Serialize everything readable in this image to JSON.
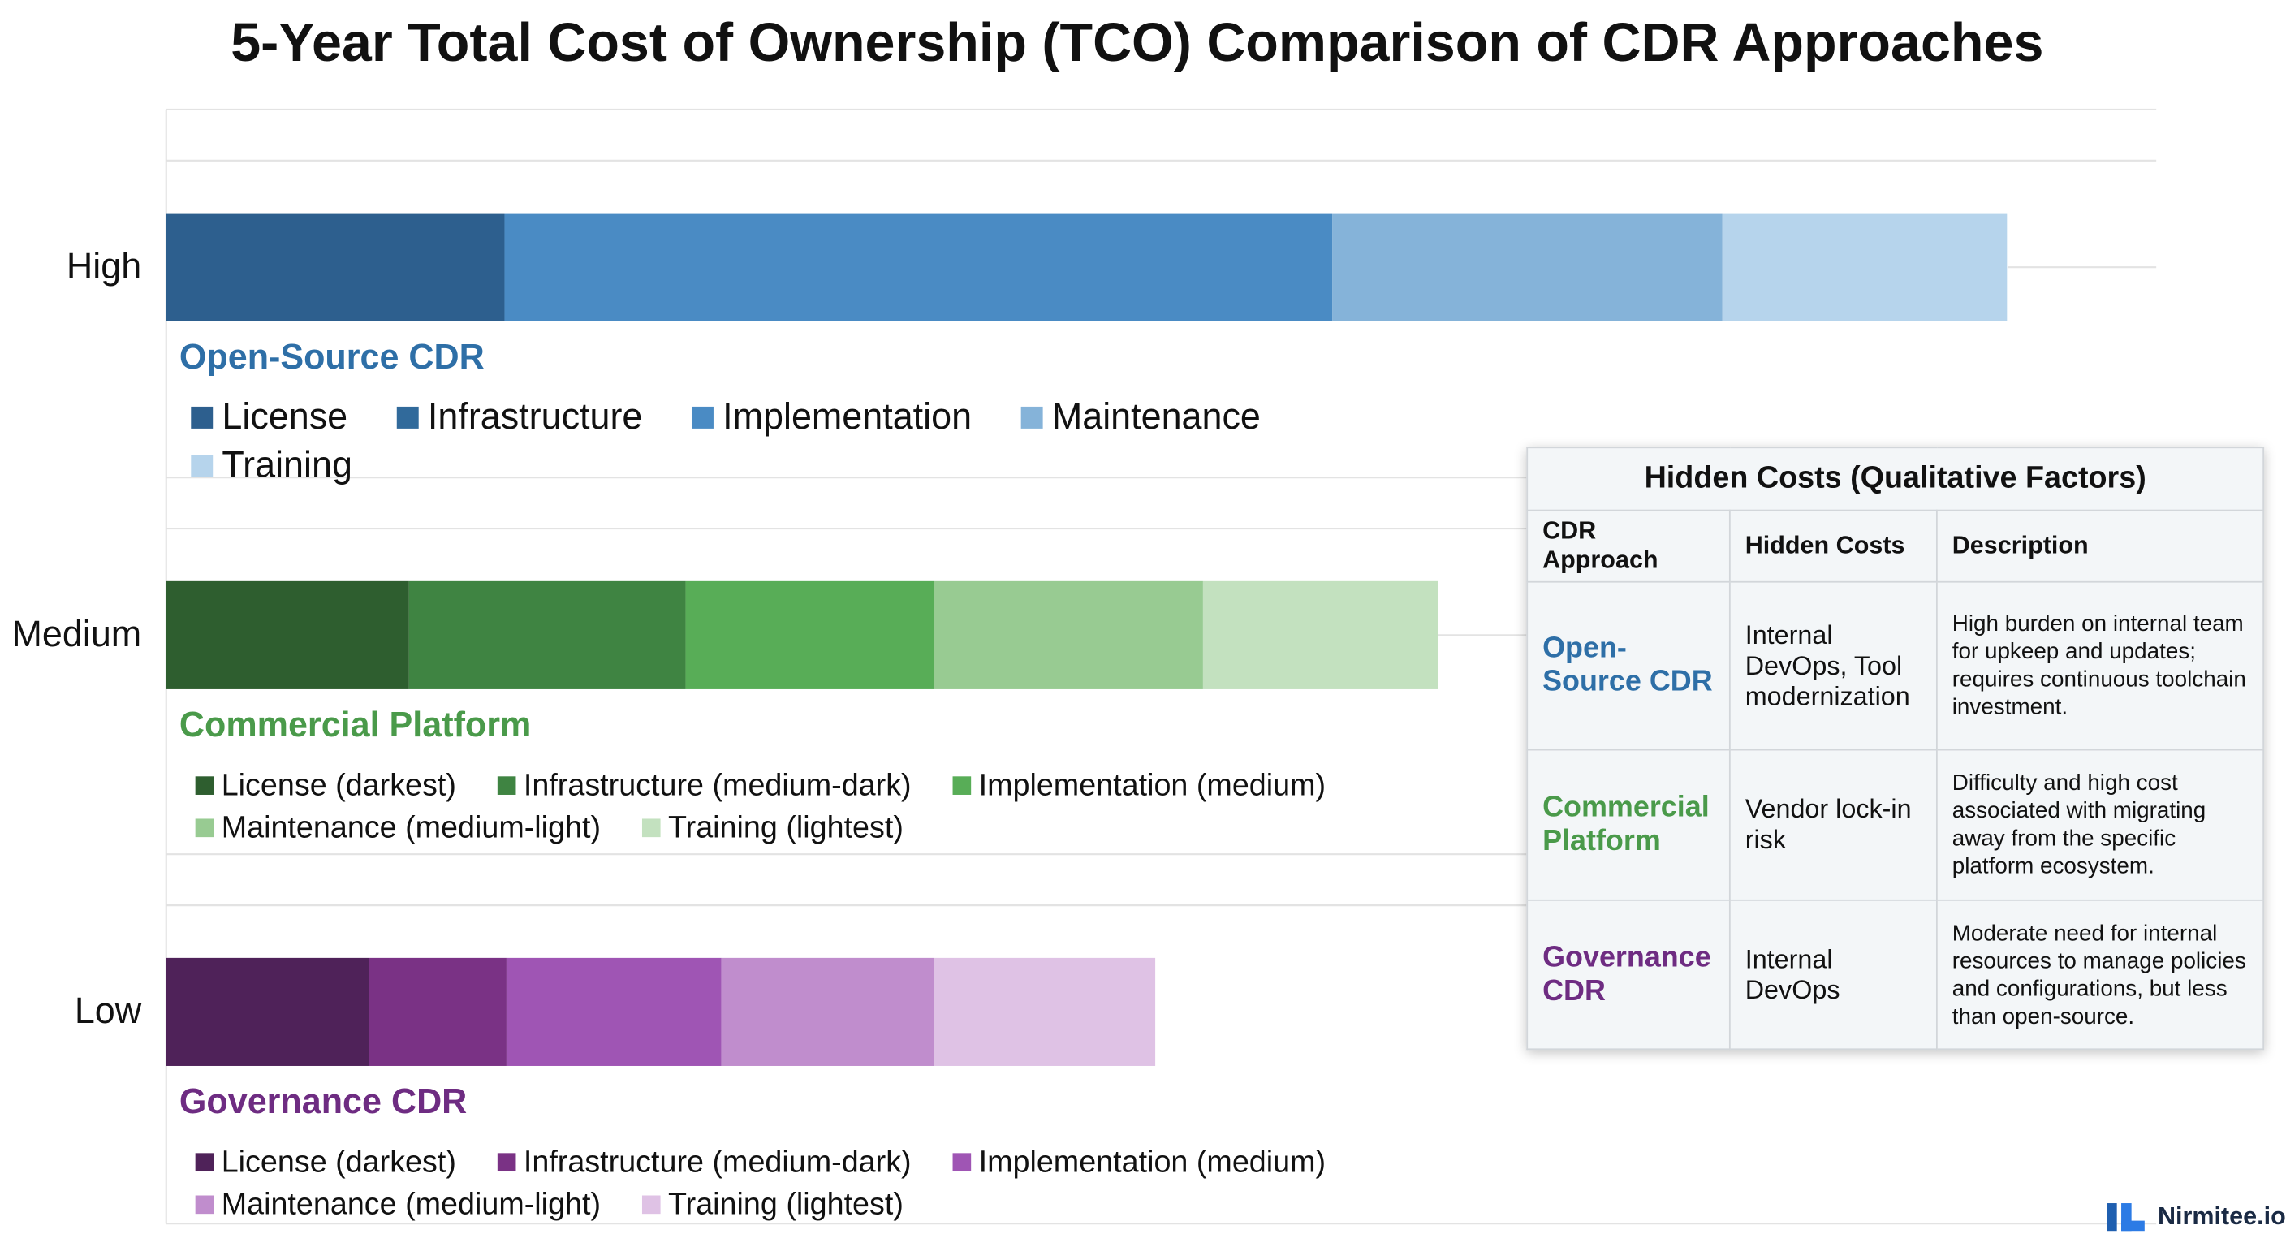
{
  "chart_data": {
    "type": "bar",
    "orientation": "horizontal",
    "title": "5-Year Total Cost of Ownership (TCO) Comparison of CDR Approaches",
    "categories": [
      "High",
      "Medium",
      "Low"
    ],
    "xlim": [
      0,
      100
    ],
    "groups": [
      {
        "name": "Open-Source CDR",
        "color": "#2e6fa7",
        "series": [
          {
            "name": "License",
            "color": "#2d5f8e",
            "value": 17.0
          },
          {
            "name": "Infrastructure",
            "color": "#316a9b",
            "value": null
          },
          {
            "name": "Implementation",
            "color": "#4a8bc4",
            "value": 41.6
          },
          {
            "name": "Maintenance",
            "color": "#85b3d9",
            "value": 19.6
          },
          {
            "name": "Training",
            "color": "#b6d4ec",
            "value": 14.3
          }
        ]
      },
      {
        "name": "Commercial Platform",
        "color": "#4a9a4a",
        "series": [
          {
            "name": "License (darkest)",
            "color": "#2e5e2f",
            "value": 12.2
          },
          {
            "name": "Infrastructure (medium-dark)",
            "color": "#3f8442",
            "value": 13.9
          },
          {
            "name": "Implementation (medium)",
            "color": "#58ad57",
            "value": 12.5
          },
          {
            "name": "Maintenance (medium-light)",
            "color": "#98cb92",
            "value": 13.5
          },
          {
            "name": "Training (lightest)",
            "color": "#c3e1bf",
            "value": 11.8
          }
        ]
      },
      {
        "name": "Governance CDR",
        "color": "#6e2c82",
        "series": [
          {
            "name": "License (darkest)",
            "color": "#4f2259",
            "value": 10.2
          },
          {
            "name": "Infrastructure (medium-dark)",
            "color": "#7a3285",
            "value": 6.9
          },
          {
            "name": "Implementation (medium)",
            "color": "#9f55b4",
            "value": 10.8
          },
          {
            "name": "Maintenance (medium-light)",
            "color": "#c08dcd",
            "value": 10.7
          },
          {
            "name": "Training (lightest)",
            "color": "#dfc2e5",
            "value": 11.1
          }
        ]
      }
    ]
  },
  "hidden_costs": {
    "title": "Hidden Costs (Qualitative Factors)",
    "columns": [
      "CDR Approach",
      "Hidden Costs",
      "Description"
    ],
    "rows": [
      [
        "Open-Source CDR",
        "Internal DevOps, Tool modernization",
        "High burden on internal team for upkeep and updates; requires continuous toolchain investment."
      ],
      [
        "Commercial Platform",
        "Vendor lock-in risk",
        "Difficulty and high cost associated with migrating away from the specific platform ecosystem."
      ],
      [
        "Governance CDR",
        "Internal DevOps",
        "Moderate need for internal resources to manage policies and configurations, but less than open-source."
      ]
    ]
  },
  "brand": "Nirmitee.io"
}
